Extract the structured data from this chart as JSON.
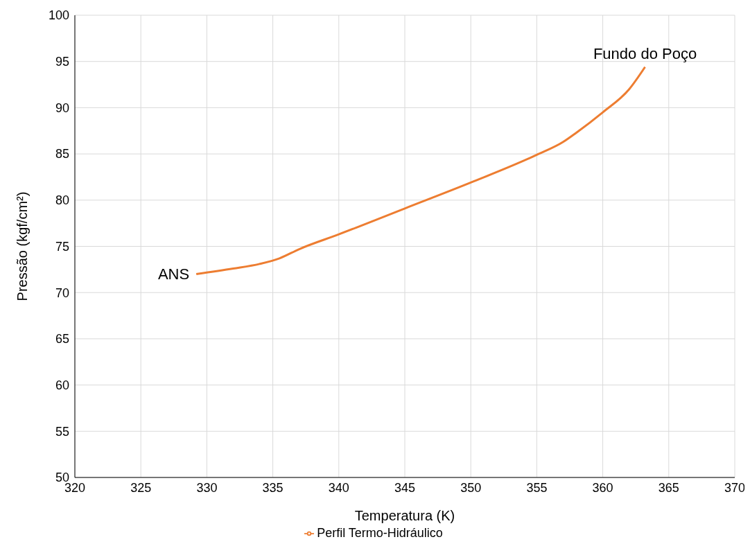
{
  "chart_data": {
    "type": "line",
    "xlabel": "Temperatura (K)",
    "ylabel": "Pressão (kgf/cm²)",
    "xlim": [
      320,
      370
    ],
    "xticks": [
      320,
      325,
      330,
      335,
      340,
      345,
      350,
      355,
      360,
      365,
      370
    ],
    "ylim": [
      50,
      100
    ],
    "yticks": [
      50,
      55,
      60,
      65,
      70,
      75,
      80,
      85,
      90,
      95,
      100
    ],
    "grid": true,
    "legend": "bottom",
    "marker": "none",
    "line_style": "solid",
    "series": [
      {
        "name": "Perfil Termo-Hidráulico",
        "color": "#ed7d31",
        "x": [
          329.2,
          332,
          334,
          335.5,
          337,
          340,
          345,
          350,
          355,
          357,
          358,
          360,
          362,
          363.2
        ],
        "values": [
          72.0,
          72.6,
          73.1,
          73.7,
          74.7,
          76.3,
          79.1,
          81.9,
          84.9,
          86.3,
          87.3,
          89.5,
          92.0,
          94.4
        ]
      }
    ],
    "annotations": [
      {
        "text": "ANS",
        "x": 329.2,
        "y": 72.0
      },
      {
        "text": "Fundo do Poço",
        "x": 363.2,
        "y": 94.4
      }
    ]
  }
}
